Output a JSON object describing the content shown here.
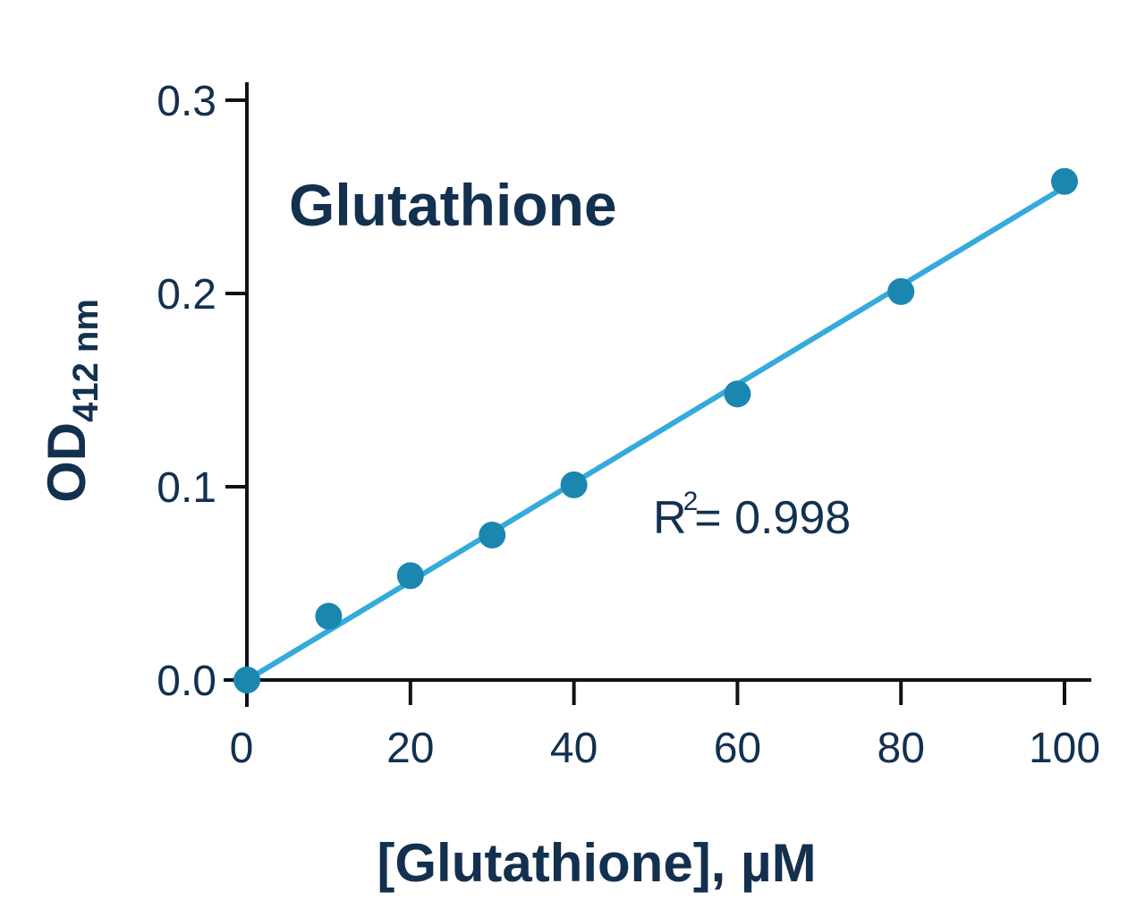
{
  "chart_data": {
    "type": "scatter",
    "title": "Glutathione",
    "xlabel": "[Glutathione], µM",
    "ylabel_main": "OD",
    "ylabel_sub": "412 nm",
    "xlim": [
      0,
      100
    ],
    "ylim": [
      0,
      0.3
    ],
    "x_ticks": [
      "0",
      "20",
      "40",
      "60",
      "80",
      "100"
    ],
    "y_ticks": [
      "0.0",
      "0.1",
      "0.2",
      "0.3"
    ],
    "series": [
      {
        "x": [
          0,
          10,
          20,
          30,
          40,
          60,
          80,
          100
        ],
        "y": [
          0.0,
          0.033,
          0.054,
          0.075,
          0.101,
          0.148,
          0.201,
          0.258
        ]
      }
    ],
    "fit_line": {
      "x": [
        0,
        100
      ],
      "y": [
        0.0,
        0.255
      ]
    },
    "annotation": {
      "r_label": "R",
      "r_sup": "2",
      "r_value": "= 0.998"
    },
    "colors": {
      "points": "#1b87b0",
      "line": "#34aadd",
      "text": "#13304f",
      "axis": "#111111"
    }
  }
}
